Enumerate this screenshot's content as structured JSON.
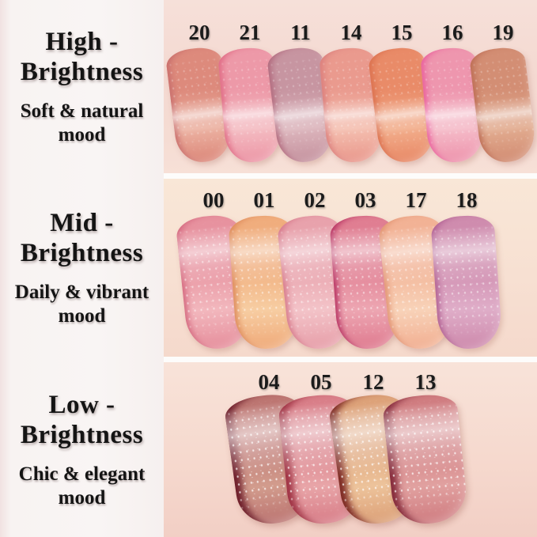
{
  "page": {
    "background": "#fdfcfb",
    "label_column_bg": "#f8f3f2",
    "skin_tone": "#f5dcd3",
    "text_color": "#141414"
  },
  "sections": [
    {
      "key": "high",
      "title": "High -\nBrightness",
      "subtitle": "Soft & natural\nmood",
      "swatches": [
        {
          "number": "20",
          "main": "#dd8a7c",
          "light": "#ecb2a2",
          "edge": "#c96f6d"
        },
        {
          "number": "21",
          "main": "#ed99a8",
          "light": "#f4bcc2",
          "edge": "#e06b85"
        },
        {
          "number": "11",
          "main": "#c795a1",
          "light": "#dcb5bc",
          "edge": "#b26a7e"
        },
        {
          "number": "14",
          "main": "#ea9a8e",
          "light": "#f4bfb0",
          "edge": "#db7f7d"
        },
        {
          "number": "15",
          "main": "#e98b68",
          "light": "#f2ae8c",
          "edge": "#db714f"
        },
        {
          "number": "16",
          "main": "#ee96ae",
          "light": "#f5bcc9",
          "edge": "#ea5f9d"
        },
        {
          "number": "19",
          "main": "#d38e74",
          "light": "#e2ac90",
          "edge": "#bd6e55"
        }
      ]
    },
    {
      "key": "mid",
      "title": "Mid -\nBrightness",
      "subtitle": "Daily & vibrant\nmood",
      "swatches": [
        {
          "number": "00",
          "main": "#e7929f",
          "light": "#f2b7bd",
          "edge": "#d4697f"
        },
        {
          "number": "01",
          "main": "#f0ad7d",
          "light": "#f7cda2",
          "edge": "#dd8a5a"
        },
        {
          "number": "02",
          "main": "#e8a2ac",
          "light": "#f3c3c8",
          "edge": "#d6798b"
        },
        {
          "number": "03",
          "main": "#e07e92",
          "light": "#eda6b2",
          "edge": "#b52f60"
        },
        {
          "number": "17",
          "main": "#f2b295",
          "light": "#f8d2b8",
          "edge": "#e19372"
        },
        {
          "number": "18",
          "main": "#cf8cae",
          "light": "#dfadc8",
          "edge": "#b05f92"
        }
      ]
    },
    {
      "key": "low",
      "title": "Low -\nBrightness",
      "subtitle": "Chic & elegant\nmood",
      "swatches": [
        {
          "number": "04",
          "main": "#bd7672",
          "light": "#d29c8d",
          "edge": "#6e1f2b"
        },
        {
          "number": "05",
          "main": "#d97f89",
          "light": "#e8a5a8",
          "edge": "#a03445"
        },
        {
          "number": "12",
          "main": "#dda279",
          "light": "#edc39b",
          "edge": "#7d2a24"
        },
        {
          "number": "13",
          "main": "#d07d81",
          "light": "#e1a1a0",
          "edge": "#862c3c"
        }
      ]
    }
  ]
}
